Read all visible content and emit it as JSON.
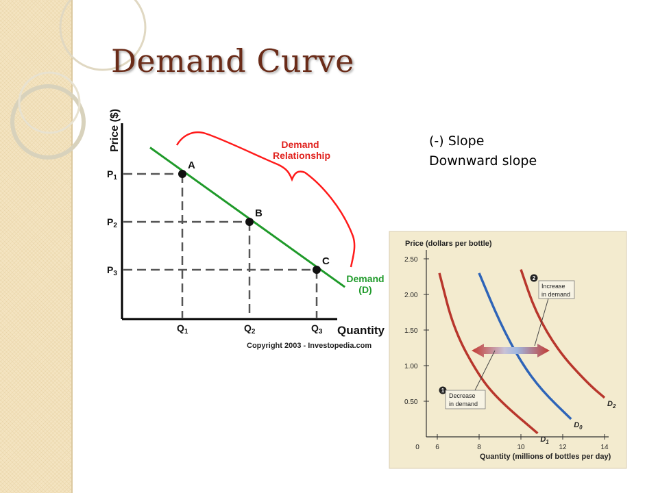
{
  "slide": {
    "title": "Demand Curve",
    "notes": [
      "(-) Slope",
      "Downward slope"
    ]
  },
  "colors": {
    "title": "#6a2b18",
    "demand_line": "#1f9a2a",
    "brace": "#ff1a1a",
    "d0": "#2e64b8",
    "d_shifted": "#b8362c",
    "chart2_bg": "#f3ebcf"
  },
  "chart_data": [
    {
      "type": "line",
      "title": "",
      "xlabel": "Quantity",
      "ylabel": "Price ($)",
      "x_ticks": [
        "Q1",
        "Q2",
        "Q3"
      ],
      "y_ticks": [
        "P1",
        "P2",
        "P3"
      ],
      "series": [
        {
          "name": "Demand (D)",
          "points": [
            {
              "x": 1,
              "y": 3,
              "label": "A"
            },
            {
              "x": 2,
              "y": 2,
              "label": "B"
            },
            {
              "x": 3,
              "y": 1,
              "label": "C"
            }
          ]
        }
      ],
      "annotations": [
        "Demand",
        "Relationship"
      ],
      "credit": "Copyright 2003 - Investopedia.com",
      "grid": false
    },
    {
      "type": "line",
      "title": "",
      "xlabel": "Quantity (millions of bottles per day)",
      "ylabel": "Price (dollars per bottle)",
      "x_ticks": [
        "0",
        "6",
        "8",
        "10",
        "12",
        "14"
      ],
      "y_ticks": [
        "2.50",
        "2.00",
        "1.50",
        "1.00",
        "0.50"
      ],
      "xlim": [
        6,
        14
      ],
      "ylim": [
        0,
        2.5
      ],
      "series": [
        {
          "name": "D0",
          "points": [
            [
              8.0,
              2.3
            ],
            [
              9.0,
              1.6
            ],
            [
              10.0,
              1.05
            ],
            [
              11.0,
              0.65
            ],
            [
              12.4,
              0.25
            ]
          ]
        },
        {
          "name": "D1",
          "points": [
            [
              6.1,
              2.3
            ],
            [
              6.8,
              1.5
            ],
            [
              8.0,
              0.85
            ],
            [
              9.0,
              0.5
            ],
            [
              10.8,
              0.05
            ]
          ]
        },
        {
          "name": "D2",
          "points": [
            [
              10.0,
              2.35
            ],
            [
              10.7,
              1.75
            ],
            [
              11.8,
              1.2
            ],
            [
              13.2,
              0.75
            ],
            [
              14.0,
              0.55
            ]
          ]
        }
      ],
      "annotation_lines": [
        {
          "number": "2",
          "label": [
            "Increase",
            "in demand"
          ]
        },
        {
          "number": "1",
          "label": [
            "Decrease",
            "in demand"
          ]
        }
      ],
      "grid": false
    }
  ]
}
